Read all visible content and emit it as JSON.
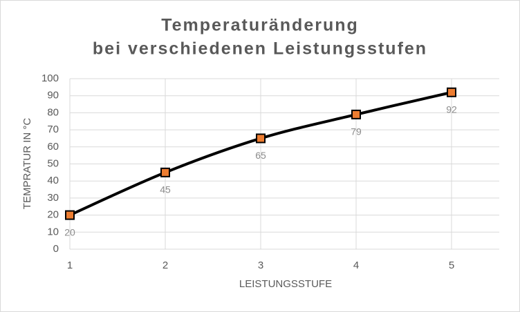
{
  "chart_data": {
    "type": "line",
    "title": [
      "Temperaturänderung",
      "bei verschiedenen Leistungsstufen"
    ],
    "x_label": "LEISTUNGSSTUFE",
    "y_label": "TEMPRATUR IN °C",
    "x": [
      1,
      2,
      3,
      4,
      5
    ],
    "series": [
      {
        "name": "Temperatur",
        "color": "#000000",
        "marker_color": "#ed7d31",
        "values": [
          20,
          45,
          65,
          79,
          92
        ]
      }
    ],
    "xlim": [
      1,
      5.5
    ],
    "xticks": [
      1,
      2,
      3,
      4,
      5
    ],
    "ylim": [
      0,
      100
    ],
    "yticks": [
      0,
      10,
      20,
      30,
      40,
      50,
      60,
      70,
      80,
      90,
      100
    ],
    "grid": true,
    "smooth": true,
    "data_labels": true
  }
}
